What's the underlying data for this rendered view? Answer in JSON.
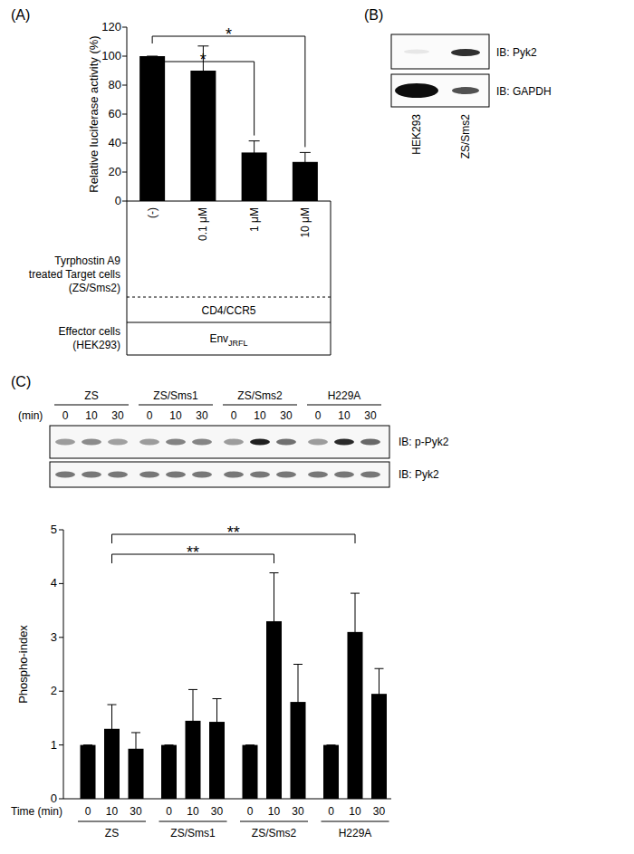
{
  "panel_labels": [
    "(A)",
    "(B)",
    "(C)"
  ],
  "chart_data": [
    {
      "type": "bar",
      "y_label": "Relative luciferase activity (%)",
      "categories": [
        "(-)",
        "0.1 μM",
        "1 μM",
        "10 μM"
      ],
      "values": [
        100,
        90,
        33.5,
        27
      ],
      "errors": [
        0,
        17,
        8,
        6.5
      ],
      "color": "#000000",
      "ylim": [
        0,
        120
      ],
      "yticks": [
        0,
        20,
        40,
        60,
        80,
        100,
        120
      ],
      "annotations": [
        {
          "text": "*",
          "from": 0,
          "to": 2
        },
        {
          "text": "*",
          "from": 0,
          "to": 3
        }
      ],
      "row_labels": {
        "target": [
          "Tyrphostin A9",
          "treated Target cells",
          "(ZS/Sms2)"
        ],
        "effector": [
          "Effector cells",
          "(HEK293)"
        ]
      },
      "target_value": "CD4/CCR5",
      "effector_value": "Env",
      "effector_value_sub": "JRFL"
    },
    {
      "type": "bar",
      "y_label": "Phospho-index",
      "x_label": "Time (min)",
      "categories": [
        "0",
        "10",
        "30",
        "0",
        "10",
        "30",
        "0",
        "10",
        "30",
        "0",
        "10",
        "30"
      ],
      "groups": [
        "ZS",
        "ZS/Sms1",
        "ZS/Sms2",
        "H229A"
      ],
      "values": [
        1,
        1.3,
        0.93,
        1,
        1.45,
        1.43,
        1,
        3.3,
        1.8,
        1,
        3.1,
        1.95
      ],
      "errors": [
        0,
        0.45,
        0.3,
        0,
        0.58,
        0.43,
        0,
        0.9,
        0.7,
        0,
        0.72,
        0.47
      ],
      "color": "#000000",
      "ylim": [
        0,
        5
      ],
      "yticks": [
        0,
        1,
        2,
        3,
        4,
        5
      ],
      "annotations": [
        {
          "text": "**",
          "from": 1,
          "to": 7
        },
        {
          "text": "**",
          "from": 1,
          "to": 10
        }
      ]
    }
  ],
  "blots": {
    "B": {
      "lanes": [
        "HEK293",
        "ZS/Sms2"
      ],
      "rows": [
        "IB: Pyk2",
        "IB: GAPDH"
      ]
    },
    "C": {
      "time_unit": "(min)",
      "times": [
        "0",
        "10",
        "30"
      ],
      "rows": [
        "IB: p-Pyk2",
        "IB: Pyk2"
      ]
    }
  }
}
